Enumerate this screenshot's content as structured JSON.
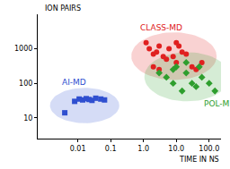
{
  "chart_data": {
    "type": "scatter",
    "xlabel": "TIME IN NS",
    "ylabel": "ION PAIRS",
    "log": true,
    "grid": false,
    "xlim": [
      0.0006,
      230
    ],
    "ylim": [
      2.5,
      10000
    ],
    "xticks": [
      {
        "value": 0.01,
        "label": "0.01"
      },
      0.1,
      {
        "value": 1,
        "label": "1.0"
      },
      {
        "value": 10,
        "label": "10.0"
      },
      {
        "value": 100,
        "label": "100.0"
      }
    ],
    "yticks": [
      10,
      100,
      1000
    ],
    "series": [
      {
        "name": "AI-MD",
        "color": "#2f4fd0",
        "marker": "square",
        "x": [
          0.004,
          0.008,
          0.011,
          0.014,
          0.018,
          0.022,
          0.027,
          0.035,
          0.05,
          0.065
        ],
        "values": [
          14,
          30,
          35,
          33,
          36,
          34,
          32,
          37,
          35,
          33
        ]
      },
      {
        "name": "CLASS-MD",
        "color": "#e02020",
        "marker": "circle",
        "x": [
          1.2,
          1.5,
          2,
          2.5,
          3,
          4,
          5,
          6,
          8,
          10,
          10,
          12,
          15,
          20,
          30,
          40,
          2,
          3,
          60
        ],
        "values": [
          1500,
          1000,
          700,
          800,
          1200,
          600,
          500,
          1000,
          600,
          400,
          1500,
          1200,
          800,
          700,
          300,
          250,
          300,
          250,
          400
        ]
      },
      {
        "name": "POL-MD",
        "color": "#2e9e2e",
        "marker": "diamond",
        "x": [
          3,
          5,
          8,
          10,
          15,
          20,
          30,
          40,
          50,
          60,
          100,
          150,
          8,
          20
        ],
        "values": [
          200,
          150,
          100,
          300,
          60,
          200,
          100,
          80,
          300,
          150,
          100,
          60,
          250,
          400
        ]
      }
    ]
  }
}
